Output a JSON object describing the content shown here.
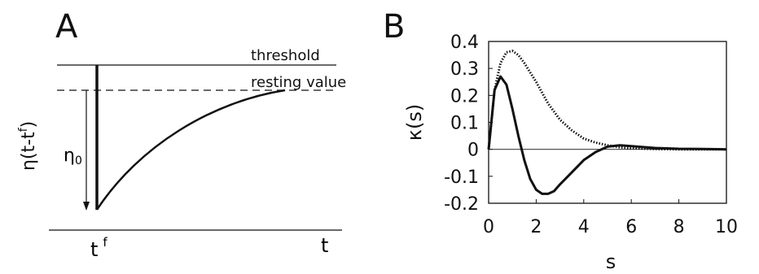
{
  "panel_a": {
    "letter": "A",
    "threshold_label": "threshold",
    "resting_label": "resting value",
    "ylabel": "η(t-t",
    "ylabel_sup": "f",
    "ylabel_close": ")",
    "eta0_main": "η",
    "eta0_sub": "0",
    "tf_main": "t",
    "tf_sup": "f",
    "t_label": "t"
  },
  "panel_b": {
    "letter": "B"
  },
  "chart_data": [
    {
      "type": "line",
      "panel": "B",
      "xlabel": "s",
      "ylabel": "κ(s)",
      "xlim": [
        0,
        10
      ],
      "ylim": [
        -0.2,
        0.4
      ],
      "xticks": [
        0,
        2,
        4,
        6,
        8,
        10
      ],
      "yticks": [
        0.4,
        0.3,
        0.2,
        0.1,
        0,
        -0.1,
        -0.2
      ],
      "ytick_labels": [
        "0.4",
        "0.3",
        "0.2",
        "0.1",
        "0",
        "-0.1",
        "-0.2"
      ],
      "zero_line": true,
      "series": [
        {
          "style": "solid",
          "color": "#111111",
          "x": [
            0,
            0.25,
            0.5,
            0.75,
            1.0,
            1.25,
            1.5,
            1.75,
            2.0,
            2.25,
            2.5,
            2.75,
            3.0,
            3.5,
            4.0,
            4.5,
            5.0,
            5.5,
            6.0,
            7.0,
            8.0,
            9.0,
            10.0
          ],
          "y": [
            0,
            0.22,
            0.27,
            0.24,
            0.15,
            0.05,
            -0.04,
            -0.11,
            -0.15,
            -0.165,
            -0.165,
            -0.155,
            -0.13,
            -0.085,
            -0.04,
            -0.01,
            0.01,
            0.015,
            0.012,
            0.005,
            0.002,
            0.001,
            0
          ]
        },
        {
          "style": "dotted",
          "color": "#111111",
          "x": [
            0,
            0.25,
            0.5,
            0.75,
            1.0,
            1.25,
            1.5,
            2.0,
            2.5,
            3.0,
            3.5,
            4.0,
            4.5,
            5.0,
            5.5,
            6.0,
            7.0,
            8.0,
            9.0,
            10.0
          ],
          "y": [
            0,
            0.22,
            0.32,
            0.36,
            0.365,
            0.35,
            0.32,
            0.25,
            0.17,
            0.11,
            0.07,
            0.04,
            0.025,
            0.015,
            0.008,
            0.004,
            0.001,
            0,
            0,
            0
          ]
        }
      ]
    }
  ]
}
